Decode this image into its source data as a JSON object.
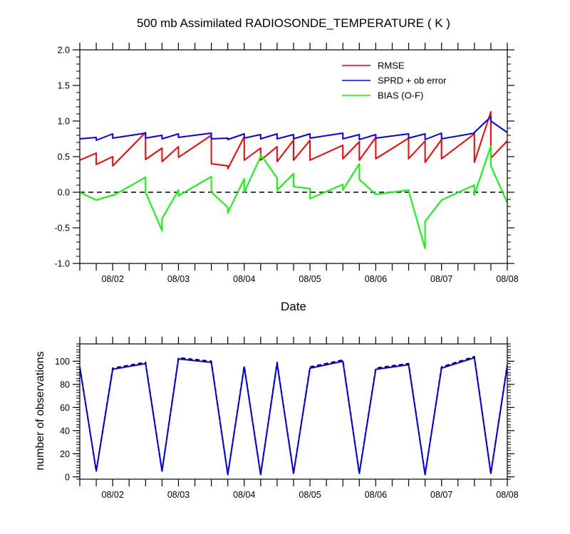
{
  "chart_data": [
    {
      "type": "line",
      "title": "500 mb Assimilated RADIOSONDE_TEMPERATURE ( K )",
      "xlabel": "Date",
      "ylabel": "",
      "x_range": [
        1.5,
        8.0
      ],
      "ylim": [
        -1.0,
        2.0
      ],
      "yticks": [
        -1.0,
        -0.5,
        0.0,
        0.5,
        1.0,
        1.5,
        2.0
      ],
      "ytick_labels": [
        "-1.0",
        "-0.5",
        "0.0",
        "0.5",
        "1.0",
        "1.5",
        "2.0"
      ],
      "xticks": [
        2,
        3,
        4,
        5,
        6,
        7,
        8
      ],
      "xtick_labels": [
        "08/02",
        "08/03",
        "08/04",
        "08/05",
        "08/06",
        "08/07",
        "08/08"
      ],
      "zero_line": "dashed",
      "legend_position": "top-right",
      "series": [
        {
          "name": "RMSE",
          "color": "#ff0000",
          "x": [
            1.5,
            1.75,
            1.75,
            2.0,
            2.0,
            2.5,
            2.5,
            2.75,
            2.75,
            3.0,
            3.0,
            3.5,
            3.5,
            3.75,
            3.75,
            4.0,
            4.0,
            4.25,
            4.25,
            4.5,
            4.5,
            4.75,
            4.75,
            5.0,
            5.0,
            5.5,
            5.5,
            5.75,
            5.75,
            6.0,
            6.0,
            6.5,
            6.5,
            6.75,
            6.75,
            7.0,
            7.0,
            7.5,
            7.5,
            7.75,
            7.75,
            8.0
          ],
          "y": [
            0.45,
            0.55,
            0.39,
            0.5,
            0.37,
            0.84,
            0.46,
            0.62,
            0.43,
            0.64,
            0.49,
            0.8,
            0.4,
            0.37,
            0.33,
            0.78,
            0.45,
            0.62,
            0.45,
            0.64,
            0.43,
            0.73,
            0.45,
            0.73,
            0.45,
            0.66,
            0.47,
            0.71,
            0.45,
            0.77,
            0.47,
            0.76,
            0.47,
            0.72,
            0.42,
            0.74,
            0.47,
            0.82,
            0.42,
            1.13,
            0.48,
            0.72
          ]
        },
        {
          "name": "SPRD + ob error",
          "color": "#0000ff",
          "x": [
            1.5,
            1.75,
            1.75,
            2.0,
            2.0,
            2.5,
            2.5,
            2.75,
            2.75,
            3.0,
            3.0,
            3.5,
            3.5,
            3.75,
            3.75,
            4.0,
            4.0,
            4.25,
            4.25,
            4.5,
            4.5,
            4.75,
            4.75,
            5.0,
            5.0,
            5.5,
            5.5,
            5.75,
            5.75,
            6.0,
            6.0,
            6.5,
            6.5,
            6.75,
            6.75,
            7.0,
            7.0,
            7.5,
            7.5,
            7.75,
            7.75,
            8.0
          ],
          "y": [
            0.75,
            0.77,
            0.73,
            0.82,
            0.76,
            0.83,
            0.76,
            0.8,
            0.75,
            0.82,
            0.77,
            0.83,
            0.75,
            0.76,
            0.74,
            0.82,
            0.76,
            0.81,
            0.75,
            0.82,
            0.75,
            0.81,
            0.75,
            0.82,
            0.76,
            0.83,
            0.75,
            0.81,
            0.74,
            0.81,
            0.76,
            0.82,
            0.76,
            0.82,
            0.74,
            0.83,
            0.75,
            0.83,
            0.84,
            1.06,
            1.0,
            0.84
          ]
        },
        {
          "name": "BIAS (O-F)",
          "color": "#00ff00",
          "x": [
            1.5,
            1.75,
            2.0,
            2.0,
            2.5,
            2.5,
            2.75,
            2.75,
            3.0,
            3.0,
            3.5,
            3.5,
            3.75,
            3.75,
            4.0,
            4.0,
            4.25,
            4.25,
            4.5,
            4.5,
            4.75,
            4.75,
            5.0,
            5.0,
            5.5,
            5.5,
            5.75,
            5.75,
            6.0,
            6.0,
            6.5,
            6.5,
            6.75,
            6.75,
            7.0,
            7.0,
            7.5,
            7.5,
            7.75,
            7.75,
            8.0
          ],
          "y": [
            0.0,
            -0.11,
            -0.04,
            -0.05,
            0.21,
            0.0,
            -0.54,
            -0.37,
            0.03,
            -0.05,
            0.22,
            0.0,
            -0.21,
            -0.29,
            0.19,
            0.0,
            0.5,
            0.53,
            0.2,
            0.03,
            0.26,
            0.08,
            0.05,
            -0.09,
            0.11,
            0.03,
            0.4,
            0.18,
            -0.03,
            -0.03,
            0.03,
            0.02,
            -0.79,
            -0.41,
            -0.11,
            -0.11,
            0.1,
            -0.04,
            0.65,
            0.37,
            -0.15
          ]
        }
      ]
    },
    {
      "type": "line",
      "title": "",
      "xlabel": "",
      "ylabel": "number of observations",
      "x_range": [
        1.5,
        8.0
      ],
      "ylim": [
        -2,
        115
      ],
      "yticks": [
        0,
        20,
        40,
        60,
        80,
        100
      ],
      "ytick_labels": [
        "0",
        "20",
        "40",
        "60",
        "80",
        "100"
      ],
      "xticks": [
        2,
        3,
        4,
        5,
        6,
        7,
        8
      ],
      "xtick_labels": [
        "08/02",
        "08/03",
        "08/04",
        "08/05",
        "08/06",
        "08/07",
        "08/08"
      ],
      "series": [
        {
          "color": "#000000",
          "style": "dashed",
          "x": [
            1.5,
            1.75,
            2.0,
            2.5,
            2.75,
            3.0,
            3.5,
            3.75,
            4.0,
            4.25,
            4.5,
            4.75,
            5.0,
            5.5,
            5.75,
            6.0,
            6.5,
            6.75,
            7.0,
            7.5,
            7.75,
            8.0
          ],
          "y": [
            95,
            5,
            94,
            99,
            5,
            103,
            100,
            2,
            96,
            2,
            99,
            3,
            95,
            101,
            3,
            94,
            98,
            2,
            95,
            104,
            3,
            97
          ]
        },
        {
          "color": "#0000ff",
          "style": "solid",
          "x": [
            1.5,
            1.75,
            2.0,
            2.5,
            2.75,
            3.0,
            3.5,
            3.75,
            4.0,
            4.25,
            4.5,
            4.75,
            5.0,
            5.5,
            5.75,
            6.0,
            6.5,
            6.75,
            7.0,
            7.5,
            7.75,
            8.0
          ],
          "y": [
            95,
            5,
            93,
            98,
            5,
            102,
            99,
            2,
            95,
            2,
            98,
            3,
            94,
            100,
            3,
            93,
            97,
            2,
            94,
            103,
            3,
            96
          ]
        }
      ]
    }
  ]
}
